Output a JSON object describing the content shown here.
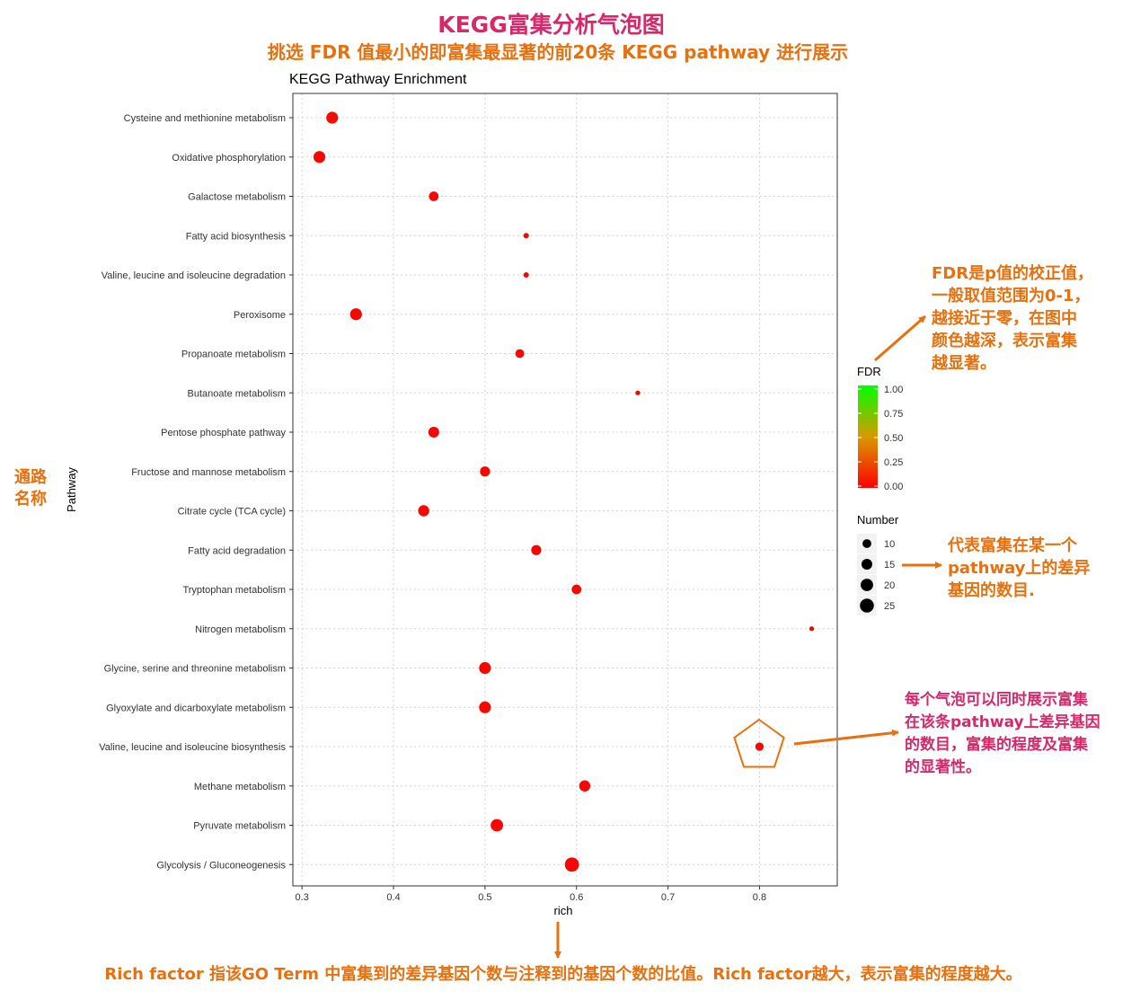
{
  "header": {
    "title": "KEGG富集分析气泡图",
    "subtitle": "挑选 FDR 值最小的即富集最显著的前20条 KEGG pathway 进行展示"
  },
  "annotations": {
    "ylabel_cn": "通路名称",
    "fdr_note": [
      "FDR是p值的校正值，",
      "一般取值范围为0-1，",
      "越接近于零，在图中",
      "颜色越深，表示富集",
      "越显著。"
    ],
    "number_note": [
      "代表富集在某一个",
      "pathway上的差异",
      "基因的数目."
    ],
    "bubble_note": [
      "每个气泡可以同时展示富集",
      "在该条pathway上差异基因",
      "的数目，富集的程度及富集",
      "的显著性。"
    ],
    "rich_note": "Rich factor 指该GO Term 中富集到的差异基因个数与注释到的基因个数的比值。Rich factor越大，表示富集的程度越大。"
  },
  "colors": {
    "title_pink": "#d6286a",
    "note_orange": "#e8700f",
    "fdr_low": "#ff0000",
    "fdr_high": "#00ff00"
  },
  "chart_data": {
    "type": "scatter",
    "title": "KEGG Pathway Enrichment",
    "xlabel": "rich",
    "ylabel": "Pathway",
    "xlim": [
      0.29,
      0.885
    ],
    "xticks": [
      0.3,
      0.4,
      0.5,
      0.6,
      0.7,
      0.8
    ],
    "grid": true,
    "legend_position": "right",
    "categories": [
      "Cysteine and methionine metabolism",
      "Oxidative phosphorylation",
      "Galactose metabolism",
      "Fatty acid biosynthesis",
      "Valine, leucine and isoleucine degradation",
      "Peroxisome",
      "Propanoate metabolism",
      "Butanoate metabolism",
      "Pentose phosphate pathway",
      "Fructose and mannose metabolism",
      "Citrate cycle (TCA cycle)",
      "Fatty acid degradation",
      "Tryptophan metabolism",
      "Nitrogen metabolism",
      "Glycine, serine and threonine metabolism",
      "Glyoxylate and dicarboxylate metabolism",
      "Valine, leucine and isoleucine biosynthesis",
      "Methane metabolism",
      "Pyruvate metabolism",
      "Glycolysis / Gluconeogenesis"
    ],
    "points": [
      {
        "pathway": "Cysteine and methionine metabolism",
        "rich": 0.333,
        "number": 18,
        "fdr": 0.05
      },
      {
        "pathway": "Oxidative phosphorylation",
        "rich": 0.319,
        "number": 18,
        "fdr": 0.02
      },
      {
        "pathway": "Galactose metabolism",
        "rich": 0.444,
        "number": 12,
        "fdr": 0.02
      },
      {
        "pathway": "Fatty acid biosynthesis",
        "rich": 0.545,
        "number": 6,
        "fdr": 0.02
      },
      {
        "pathway": "Valine, leucine and isoleucine degradation",
        "rich": 0.545,
        "number": 6,
        "fdr": 0.02
      },
      {
        "pathway": "Peroxisome",
        "rich": 0.359,
        "number": 18,
        "fdr": 0.02
      },
      {
        "pathway": "Propanoate metabolism",
        "rich": 0.538,
        "number": 10,
        "fdr": 0.02
      },
      {
        "pathway": "Butanoate metabolism",
        "rich": 0.667,
        "number": 5,
        "fdr": 0.02
      },
      {
        "pathway": "Pentose phosphate pathway",
        "rich": 0.444,
        "number": 15,
        "fdr": 0.02
      },
      {
        "pathway": "Fructose and mannose metabolism",
        "rich": 0.5,
        "number": 13,
        "fdr": 0.02
      },
      {
        "pathway": "Citrate cycle (TCA cycle)",
        "rich": 0.433,
        "number": 16,
        "fdr": 0.02
      },
      {
        "pathway": "Fatty acid degradation",
        "rich": 0.556,
        "number": 13,
        "fdr": 0.02
      },
      {
        "pathway": "Tryptophan metabolism",
        "rich": 0.6,
        "number": 12,
        "fdr": 0.02
      },
      {
        "pathway": "Nitrogen metabolism",
        "rich": 0.857,
        "number": 5,
        "fdr": 0.02
      },
      {
        "pathway": "Glycine, serine and threonine metabolism",
        "rich": 0.5,
        "number": 18,
        "fdr": 0.02
      },
      {
        "pathway": "Glyoxylate and dicarboxylate metabolism",
        "rich": 0.5,
        "number": 18,
        "fdr": 0.02
      },
      {
        "pathway": "Valine, leucine and isoleucine biosynthesis",
        "rich": 0.8,
        "number": 9,
        "fdr": 0.02
      },
      {
        "pathway": "Methane metabolism",
        "rich": 0.609,
        "number": 16,
        "fdr": 0.02
      },
      {
        "pathway": "Pyruvate metabolism",
        "rich": 0.513,
        "number": 20,
        "fdr": 0.02
      },
      {
        "pathway": "Glycolysis / Gluconeogenesis",
        "rich": 0.595,
        "number": 26,
        "fdr": 0.02
      }
    ],
    "legend_fdr": {
      "title": "FDR",
      "ticks": [
        "1.00",
        "0.75",
        "0.50",
        "0.25",
        "0.00"
      ]
    },
    "legend_number": {
      "title": "Number",
      "values": [
        10,
        15,
        20,
        25
      ],
      "labels": [
        "10",
        "15",
        "20",
        "25"
      ]
    }
  }
}
